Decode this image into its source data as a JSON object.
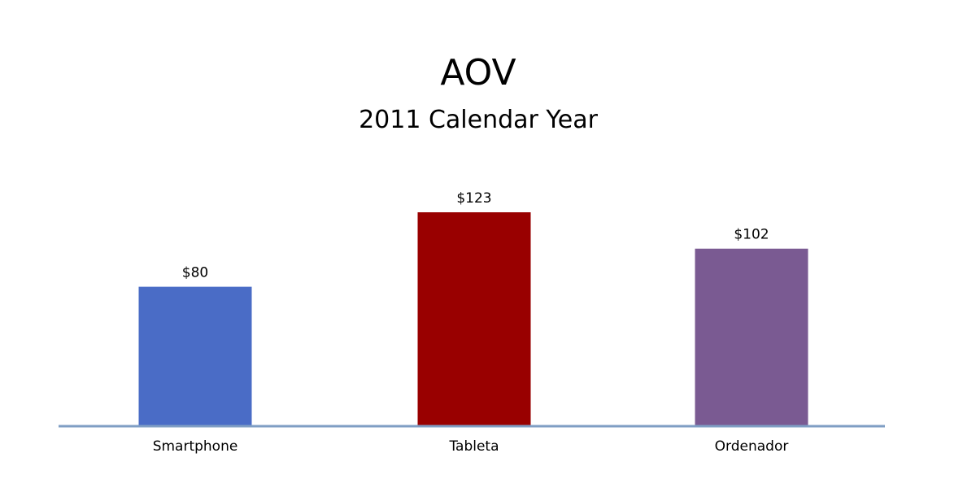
{
  "chart_data": {
    "type": "bar",
    "title": "AOV",
    "subtitle": "2011 Calendar Year",
    "categories": [
      "Smartphone",
      "Tableta",
      "Ordenador"
    ],
    "values": [
      80,
      123,
      102
    ],
    "data_labels": [
      "$80",
      "$123",
      "$102"
    ],
    "bar_colors": [
      "#4a6cc6",
      "#990000",
      "#7a5a92"
    ],
    "axis_color": "#7f9ec4",
    "ylim": [
      0,
      123
    ],
    "grid": false,
    "legend": "none"
  }
}
